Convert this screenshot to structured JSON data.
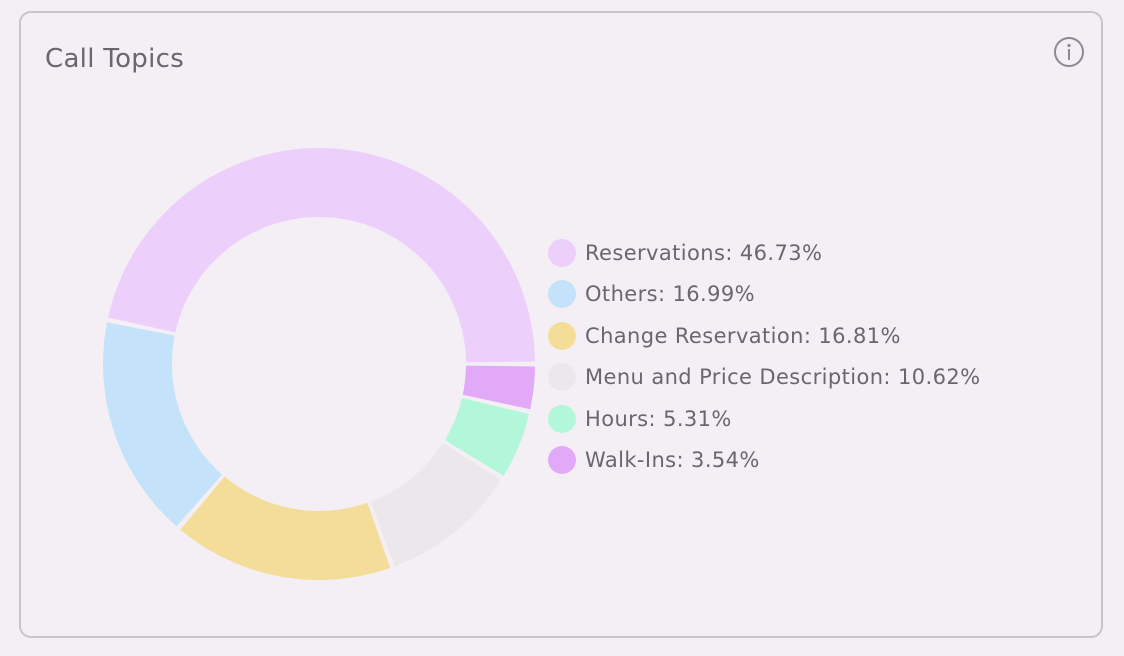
{
  "card": {
    "title": "Call Topics",
    "info_icon": "info-circle-icon"
  },
  "chart_data": {
    "type": "pie",
    "donut": true,
    "title": "Call Topics",
    "legend_position": "right",
    "series": [
      {
        "name": "Reservations",
        "value": 46.73,
        "label": "Reservations: 46.73%",
        "color": "#ecd0fb"
      },
      {
        "name": "Others",
        "value": 16.99,
        "label": "Others: 16.99%",
        "color": "#c4e2f9"
      },
      {
        "name": "Change Reservation",
        "value": 16.81,
        "label": "Change Reservation: 16.81%",
        "color": "#f4dd98"
      },
      {
        "name": "Menu and Price Description",
        "value": 10.62,
        "label": "Menu and Price Description: 10.62%",
        "color": "#ece7ea"
      },
      {
        "name": "Hours",
        "value": 5.31,
        "label": "Hours: 5.31%",
        "color": "#b3f7da"
      },
      {
        "name": "Walk-Ins",
        "value": 3.54,
        "label": "Walk-Ins: 3.54%",
        "color": "#e1a9f8"
      }
    ]
  }
}
